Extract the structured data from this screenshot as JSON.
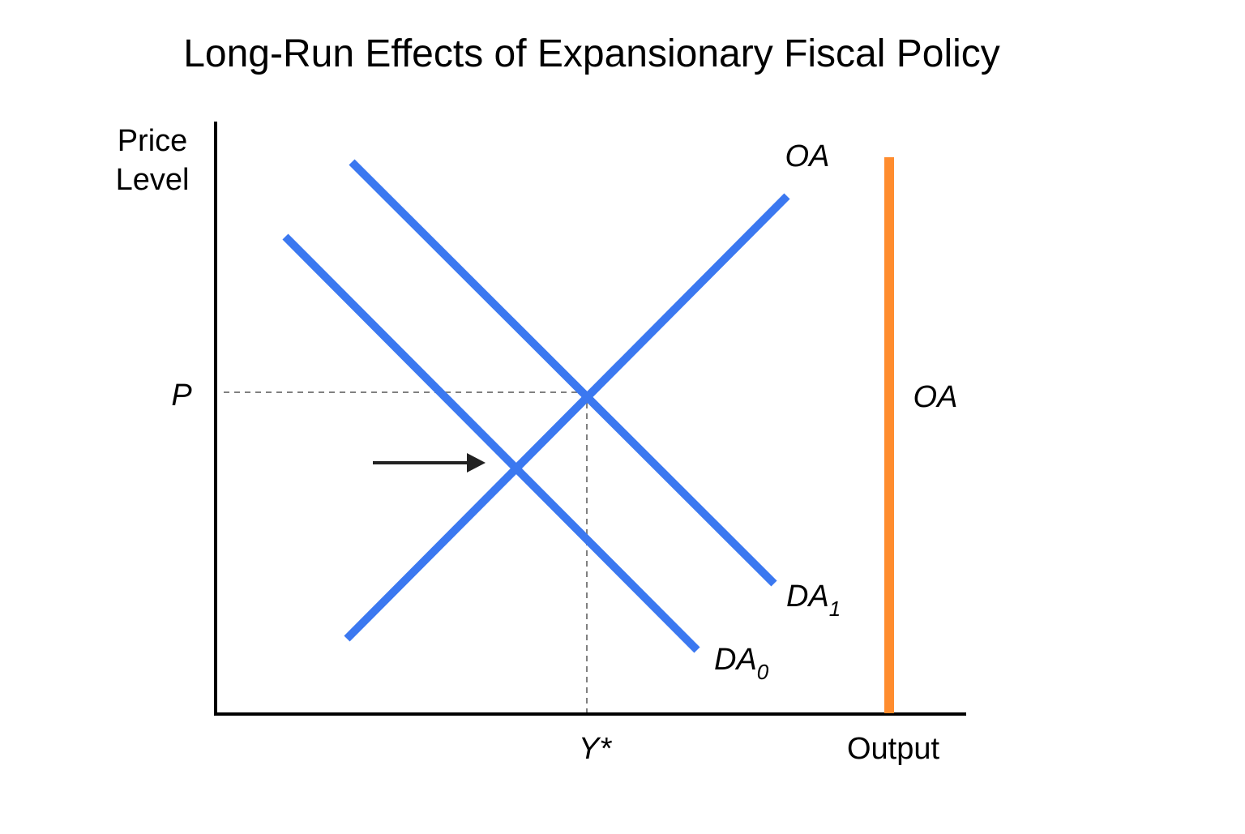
{
  "title": "Long-Run Effects of Expansionary Fiscal Policy",
  "axes": {
    "y_label_line1": "Price",
    "y_label_line2": "Level",
    "x_label": "Output"
  },
  "markers": {
    "price": "P",
    "output": "Y*"
  },
  "curves": {
    "sras": {
      "label": "OA"
    },
    "lras": {
      "label": "OA"
    },
    "da0": {
      "label": "DA",
      "subscript": "0"
    },
    "da1": {
      "label": "DA",
      "subscript": "1"
    }
  },
  "colors": {
    "curves": "#3b78f0",
    "lras": "#ff8c2e",
    "axes": "#000000",
    "guides": "#808080",
    "arrow": "#222222"
  }
}
